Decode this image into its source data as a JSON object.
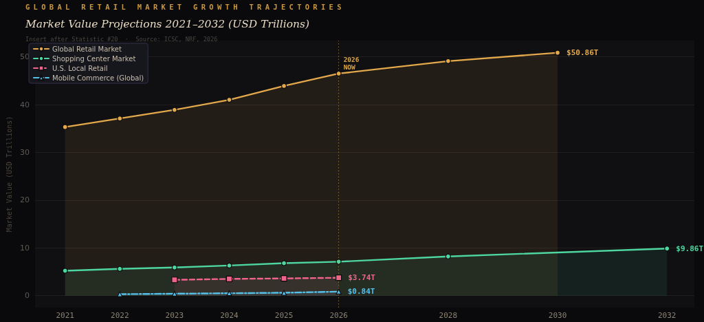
{
  "chart_data": {
    "type": "area",
    "subtitle": "GLOBAL RETAIL MARKET GROWTH TRAJECTORIES",
    "title": "Market Value Projections 2021–2032 (USD Trillions)",
    "ylabel": "Market Value (USD Trillions)",
    "annotations": [
      "Insert after Statistic #20  ·  Source: ICSC, NRF, 2026"
    ],
    "xlim": [
      2020.45,
      2032.5
    ],
    "xticks": [
      2021,
      2022,
      2023,
      2024,
      2025,
      2026,
      2028,
      2030,
      2032
    ],
    "ylim": [
      -2.5,
      53.4
    ],
    "yticks": [
      0,
      10,
      20,
      30,
      40,
      50
    ],
    "grid": "y",
    "legend": "top left",
    "ref_lines": [
      {
        "axis": "x",
        "value": 2026,
        "label": "2026\nNOW",
        "color": "#d9a441",
        "line_style": "dotted"
      }
    ],
    "series": [
      {
        "name": "Global Retail Market",
        "color": "#e3a84b",
        "marker": "circle",
        "line_style": "solid",
        "x": [
          2021,
          2022,
          2023,
          2024,
          2025,
          2026,
          2028,
          2030
        ],
        "values": [
          35.3,
          37.1,
          38.9,
          41.0,
          43.9,
          46.5,
          49.1,
          50.86
        ],
        "value_labels": [
          null,
          null,
          null,
          null,
          null,
          null,
          null,
          "$50.86T"
        ]
      },
      {
        "name": "Shopping Center Market",
        "color": "#4ed6a0",
        "marker": "circle",
        "line_style": "solid",
        "x": [
          2021,
          2022,
          2023,
          2024,
          2025,
          2026,
          2028,
          2032
        ],
        "values": [
          5.2,
          5.6,
          5.9,
          6.3,
          6.8,
          7.1,
          8.2,
          9.86
        ],
        "value_labels": [
          null,
          null,
          null,
          null,
          null,
          null,
          null,
          "$9.86T"
        ]
      },
      {
        "name": "U.S. Local Retail",
        "color": "#f0648c",
        "marker": "square",
        "line_style": "dashed",
        "x": [
          2023,
          2024,
          2025,
          2026
        ],
        "values": [
          3.3,
          3.5,
          3.6,
          3.74
        ],
        "value_labels": [
          null,
          null,
          null,
          "$3.74T"
        ]
      },
      {
        "name": "Mobile Commerce (Global)",
        "color": "#55c0ea",
        "marker": "triangle",
        "line_style": "dashdot",
        "x": [
          2022,
          2023,
          2024,
          2025,
          2026
        ],
        "values": [
          0.3,
          0.4,
          0.5,
          0.6,
          0.84
        ],
        "value_labels": [
          null,
          null,
          null,
          null,
          "$0.84T"
        ]
      }
    ]
  }
}
